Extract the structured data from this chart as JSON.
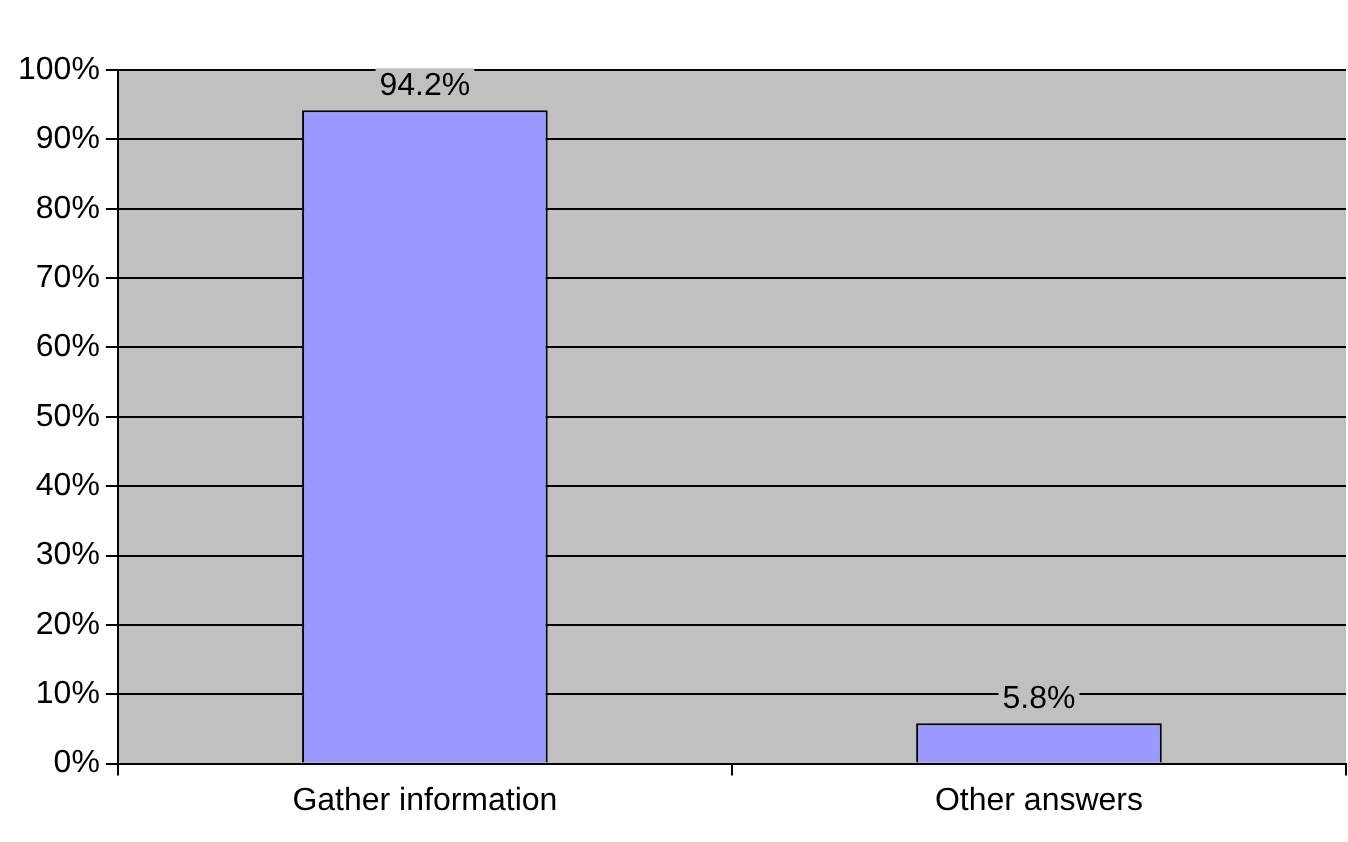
{
  "chart_data": {
    "type": "bar",
    "categories": [
      "Gather information",
      "Other answers"
    ],
    "values": [
      94.2,
      5.8
    ],
    "color": "#9999ff",
    "value_labels": [
      "94.2%",
      "5.8%"
    ],
    "ylim": [
      0,
      100
    ],
    "yticks": [
      {
        "value": 0,
        "label": "0%"
      },
      {
        "value": 10,
        "label": "10%"
      },
      {
        "value": 20,
        "label": "20%"
      },
      {
        "value": 30,
        "label": "30%"
      },
      {
        "value": 40,
        "label": "40%"
      },
      {
        "value": 50,
        "label": "50%"
      },
      {
        "value": 60,
        "label": "60%"
      },
      {
        "value": 70,
        "label": "70%"
      },
      {
        "value": 80,
        "label": "80%"
      },
      {
        "value": 90,
        "label": "90%"
      },
      {
        "value": 100,
        "label": "100%"
      }
    ],
    "grid": "y",
    "legend": false
  }
}
